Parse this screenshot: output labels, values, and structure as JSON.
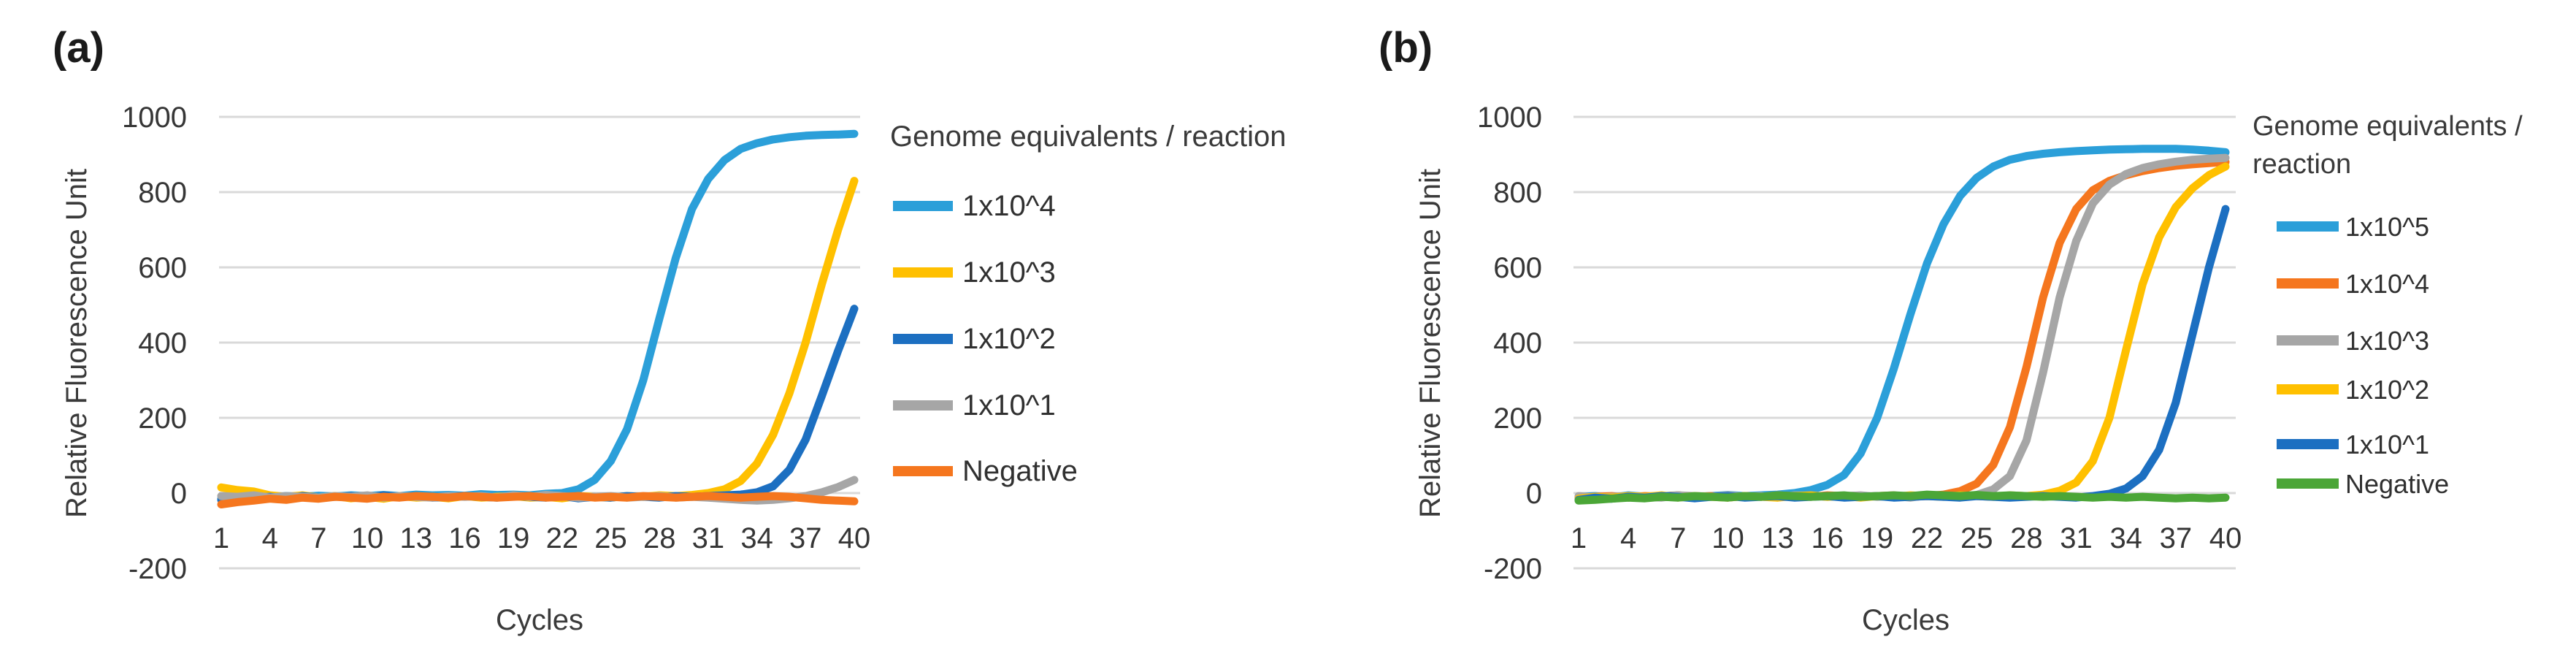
{
  "figure": {
    "background_color": "#ffffff",
    "gridline_color": "#d9d9d9"
  },
  "chart_data": [
    {
      "type": "line",
      "panel_label": "(a)",
      "xlabel": "Cycles",
      "ylabel": "Relative Fluorescence Unit",
      "legend_title": "Genome equivalents / reaction",
      "legend_title_lines": [
        "Genome equivalents / reaction"
      ],
      "legend_position": "right",
      "x": {
        "start": 1,
        "step": 1,
        "count": 40
      },
      "x_tick_labels": [
        1,
        4,
        7,
        10,
        13,
        16,
        19,
        22,
        25,
        28,
        31,
        34,
        37,
        40
      ],
      "ylim": [
        -200,
        1000
      ],
      "y_ticks": [
        1000,
        800,
        600,
        400,
        200,
        0,
        -200
      ],
      "grid": "horizontal",
      "series": [
        {
          "name": "1x10^4",
          "color": "#2B9FD9",
          "values": [
            -15,
            -12,
            -10,
            -12,
            -8,
            -10,
            -7,
            -9,
            -6,
            -8,
            -5,
            -8,
            -4,
            -6,
            -5,
            -7,
            -3,
            -5,
            -4,
            -6,
            -2,
            0,
            10,
            35,
            85,
            170,
            300,
            465,
            625,
            755,
            835,
            885,
            915,
            930,
            940,
            946,
            950,
            952,
            953,
            955
          ]
        },
        {
          "name": "1x10^3",
          "color": "#FFC000",
          "values": [
            15,
            8,
            4,
            -6,
            -10,
            -6,
            -12,
            -8,
            -14,
            -10,
            -15,
            -8,
            -12,
            -10,
            -14,
            -8,
            -12,
            -10,
            -8,
            -12,
            -10,
            -14,
            -8,
            -10,
            -12,
            -8,
            -10,
            -6,
            -8,
            -5,
            0,
            10,
            32,
            78,
            155,
            265,
            400,
            555,
            700,
            830
          ]
        },
        {
          "name": "1x10^2",
          "color": "#1C6FC1",
          "values": [
            -18,
            -15,
            -12,
            -10,
            -14,
            -8,
            -12,
            -10,
            -8,
            -12,
            -6,
            -10,
            -8,
            -12,
            -10,
            -8,
            -10,
            -12,
            -8,
            -10,
            -12,
            -8,
            -14,
            -10,
            -12,
            -8,
            -10,
            -12,
            -8,
            -10,
            -8,
            -6,
            -4,
            2,
            18,
            62,
            142,
            258,
            378,
            490
          ]
        },
        {
          "name": "1x10^1",
          "color": "#A6A6A6",
          "values": [
            -8,
            -10,
            -6,
            -12,
            -8,
            -10,
            -12,
            -8,
            -10,
            -6,
            -12,
            -8,
            -10,
            -12,
            -8,
            -10,
            -8,
            -12,
            -6,
            -10,
            -5,
            -8,
            -12,
            -10,
            -8,
            -12,
            -10,
            -8,
            -12,
            -10,
            -12,
            -15,
            -18,
            -20,
            -18,
            -14,
            -8,
            2,
            16,
            35
          ]
        },
        {
          "name": "Negative",
          "color": "#F5761E",
          "values": [
            -30,
            -24,
            -20,
            -15,
            -18,
            -12,
            -15,
            -10,
            -12,
            -15,
            -10,
            -12,
            -8,
            -10,
            -12,
            -8,
            -10,
            -12,
            -10,
            -8,
            -12,
            -10,
            -8,
            -12,
            -10,
            -12,
            -8,
            -10,
            -12,
            -10,
            -8,
            -10,
            -12,
            -10,
            -8,
            -10,
            -14,
            -18,
            -20,
            -22
          ]
        }
      ]
    },
    {
      "type": "line",
      "panel_label": "(b)",
      "xlabel": "Cycles",
      "ylabel": "Relative Fluorescence Unit",
      "legend_title": "Genome equivalents / reaction",
      "legend_title_lines": [
        "Genome equivalents /",
        "reaction"
      ],
      "legend_position": "right",
      "x": {
        "start": 1,
        "step": 1,
        "count": 40
      },
      "x_tick_labels": [
        1,
        4,
        7,
        10,
        13,
        16,
        19,
        22,
        25,
        28,
        31,
        34,
        37,
        40
      ],
      "ylim": [
        -200,
        1000
      ],
      "y_ticks": [
        1000,
        800,
        600,
        400,
        200,
        0,
        -200
      ],
      "grid": "horizontal",
      "series": [
        {
          "name": "1x10^5",
          "color": "#2B9FD9",
          "values": [
            -10,
            -8,
            -12,
            -6,
            -10,
            -8,
            -6,
            -10,
            -8,
            -5,
            -8,
            -6,
            -4,
            0,
            8,
            22,
            48,
            105,
            200,
            330,
            475,
            610,
            715,
            790,
            838,
            868,
            886,
            896,
            902,
            906,
            909,
            911,
            913,
            914,
            915,
            915,
            915,
            913,
            910,
            906
          ]
        },
        {
          "name": "1x10^4",
          "color": "#F5761E",
          "values": [
            -12,
            -10,
            -8,
            -12,
            -8,
            -10,
            -6,
            -10,
            -8,
            -12,
            -8,
            -10,
            -6,
            -8,
            -10,
            -6,
            -8,
            -10,
            -8,
            -6,
            -10,
            -8,
            -4,
            5,
            25,
            75,
            175,
            335,
            520,
            665,
            755,
            805,
            830,
            845,
            856,
            864,
            870,
            874,
            877,
            880
          ]
        },
        {
          "name": "1x10^3",
          "color": "#A6A6A6",
          "values": [
            -8,
            -12,
            -10,
            -8,
            -10,
            -12,
            -6,
            -8,
            -10,
            -6,
            -10,
            -8,
            -12,
            -6,
            -8,
            -10,
            -8,
            -6,
            -10,
            -8,
            -12,
            -6,
            -8,
            -10,
            -5,
            10,
            45,
            140,
            320,
            520,
            670,
            770,
            820,
            848,
            864,
            874,
            881,
            886,
            889,
            891
          ]
        },
        {
          "name": "1x10^2",
          "color": "#FFC000",
          "values": [
            -15,
            -10,
            -12,
            -8,
            -10,
            -6,
            -12,
            -8,
            -10,
            -12,
            -8,
            -10,
            -12,
            -8,
            -6,
            -10,
            -8,
            -12,
            -8,
            -10,
            -6,
            -8,
            -10,
            -6,
            -8,
            -10,
            -6,
            -8,
            -4,
            6,
            28,
            85,
            200,
            380,
            555,
            680,
            760,
            810,
            845,
            868
          ]
        },
        {
          "name": "1x10^1",
          "color": "#1C6FC1",
          "values": [
            -18,
            -12,
            -15,
            -10,
            -12,
            -8,
            -10,
            -14,
            -10,
            -8,
            -12,
            -10,
            -8,
            -12,
            -10,
            -8,
            -12,
            -10,
            -8,
            -12,
            -10,
            -8,
            -10,
            -12,
            -8,
            -10,
            -12,
            -10,
            -8,
            -10,
            -12,
            -8,
            -2,
            12,
            45,
            115,
            240,
            420,
            600,
            755
          ]
        },
        {
          "name": "Negative",
          "color": "#4BA637",
          "values": [
            -20,
            -18,
            -15,
            -12,
            -14,
            -10,
            -12,
            -8,
            -10,
            -12,
            -8,
            -10,
            -6,
            -8,
            -10,
            -8,
            -6,
            -10,
            -8,
            -6,
            -8,
            -4,
            -6,
            -8,
            -5,
            -8,
            -6,
            -8,
            -10,
            -8,
            -10,
            -12,
            -10,
            -12,
            -10,
            -12,
            -14,
            -12,
            -14,
            -12
          ]
        }
      ]
    }
  ]
}
